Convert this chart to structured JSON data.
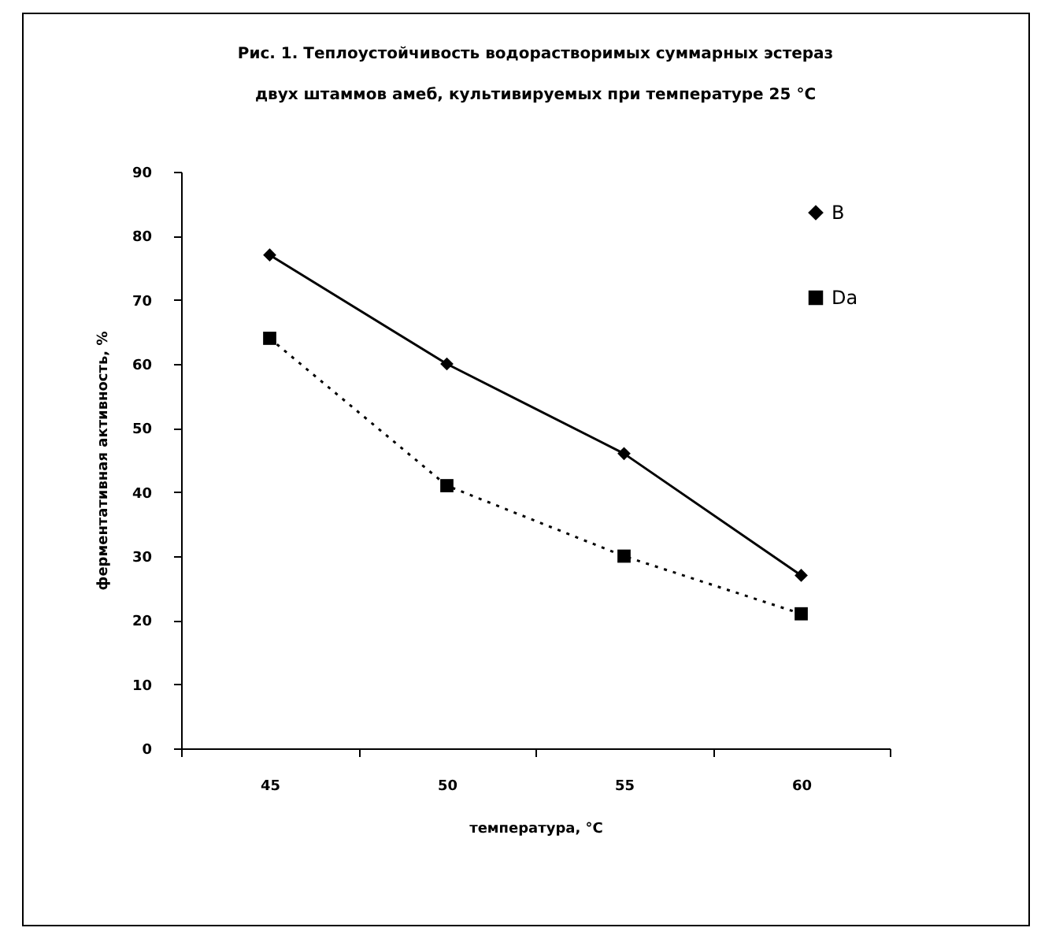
{
  "chart_data": {
    "type": "line",
    "title": "Рис. 1. Теплоустойчивость водорастворимых суммарных эстераз двух штаммов амеб, культивируемых при температуре 25 °С",
    "xlabel": "температура,  °С",
    "ylabel": "ферментативная активность, %",
    "categories": [
      "45",
      "50",
      "55",
      "60"
    ],
    "series": [
      {
        "name": "B",
        "color": "#000000",
        "values": [
          77,
          60,
          46,
          27
        ],
        "marker": "diamond",
        "line_style": "solid"
      },
      {
        "name": "Da",
        "color": "#000000",
        "values": [
          64,
          41,
          30,
          21
        ],
        "marker": "square",
        "line_style": "dotted"
      }
    ],
    "ylim": [
      0,
      90
    ],
    "yticks": [
      0,
      10,
      20,
      30,
      40,
      50,
      60,
      70,
      80,
      90
    ],
    "grid": false,
    "legend": "top right"
  }
}
